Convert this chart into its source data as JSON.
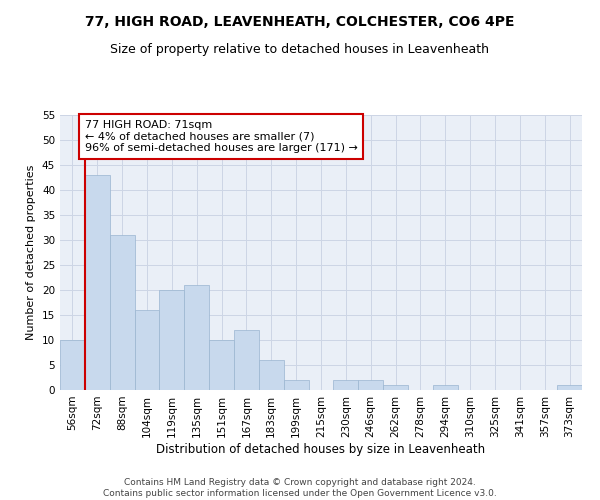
{
  "title1": "77, HIGH ROAD, LEAVENHEATH, COLCHESTER, CO6 4PE",
  "title2": "Size of property relative to detached houses in Leavenheath",
  "xlabel": "Distribution of detached houses by size in Leavenheath",
  "ylabel": "Number of detached properties",
  "categories": [
    "56sqm",
    "72sqm",
    "88sqm",
    "104sqm",
    "119sqm",
    "135sqm",
    "151sqm",
    "167sqm",
    "183sqm",
    "199sqm",
    "215sqm",
    "230sqm",
    "246sqm",
    "262sqm",
    "278sqm",
    "294sqm",
    "310sqm",
    "325sqm",
    "341sqm",
    "357sqm",
    "373sqm"
  ],
  "values": [
    10,
    43,
    31,
    16,
    20,
    21,
    10,
    12,
    6,
    2,
    0,
    2,
    2,
    1,
    0,
    1,
    0,
    0,
    0,
    0,
    1
  ],
  "bar_color": "#c8d9ed",
  "bar_edge_color": "#9ab5d0",
  "grid_color": "#cdd5e5",
  "background_color": "#eaeff7",
  "marker_line_color": "#cc0000",
  "annotation_text": "77 HIGH ROAD: 71sqm\n← 4% of detached houses are smaller (7)\n96% of semi-detached houses are larger (171) →",
  "annotation_box_color": "#ffffff",
  "annotation_box_edge": "#cc0000",
  "ylim": [
    0,
    55
  ],
  "yticks": [
    0,
    5,
    10,
    15,
    20,
    25,
    30,
    35,
    40,
    45,
    50,
    55
  ],
  "footer": "Contains HM Land Registry data © Crown copyright and database right 2024.\nContains public sector information licensed under the Open Government Licence v3.0.",
  "title1_fontsize": 10,
  "title2_fontsize": 9,
  "xlabel_fontsize": 8.5,
  "ylabel_fontsize": 8,
  "tick_fontsize": 7.5,
  "annotation_fontsize": 8,
  "footer_fontsize": 6.5
}
